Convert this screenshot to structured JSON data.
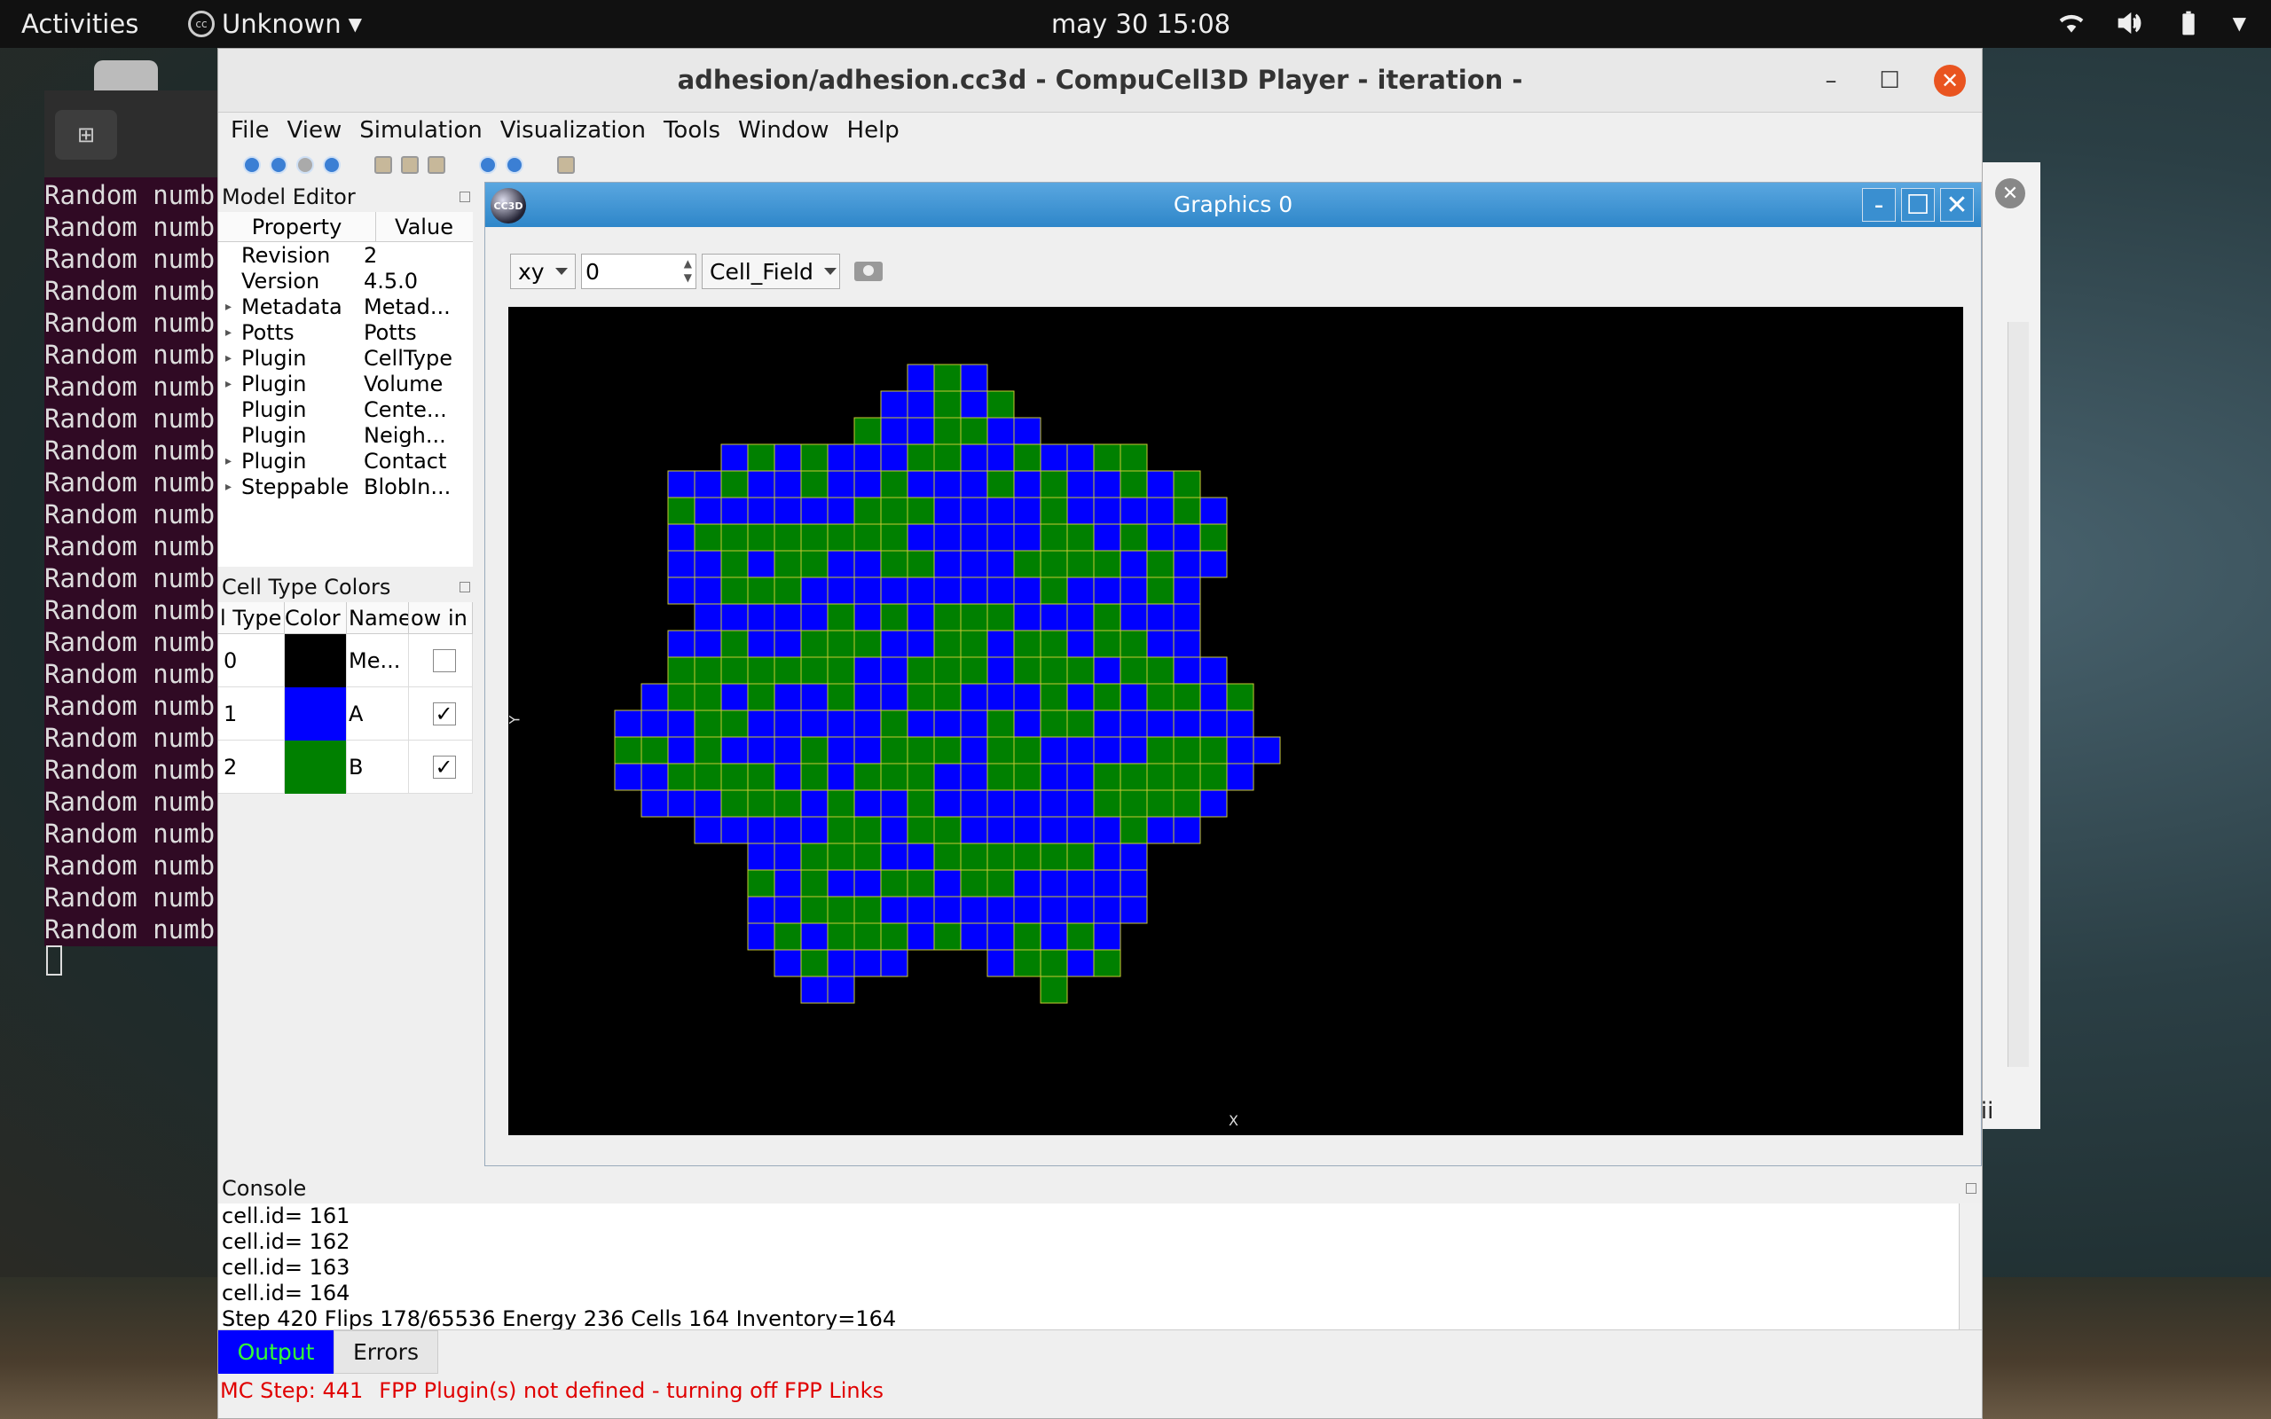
{
  "topbar": {
    "activities": "Activities",
    "app_name": "Unknown",
    "clock": "may 30  15:08"
  },
  "terminal": {
    "lines": [
      "Random numb",
      "Random numb",
      "Random numb",
      "Random numb",
      "Random numb",
      "Random numb",
      "Random numb",
      "Random numb",
      "Random numb",
      "Random numb",
      "Random numb",
      "Random numb",
      "Random numb",
      "Random numb",
      "Random numb",
      "Random numb",
      "Random numb",
      "Random numb",
      "Random numb",
      "Random numb",
      "Random numb",
      "Random numb",
      "Random numb",
      "Random numb"
    ]
  },
  "bgwin": {
    "partial_text": "scii"
  },
  "window": {
    "title": "adhesion/adhesion.cc3d - CompuCell3D Player - iteration -"
  },
  "menu": [
    "File",
    "View",
    "Simulation",
    "Visualization",
    "Tools",
    "Window",
    "Help"
  ],
  "model_editor": {
    "title": "Model Editor",
    "col_property": "Property",
    "col_value": "Value",
    "rows": [
      {
        "expand": "",
        "property": "Revision",
        "value": "2"
      },
      {
        "expand": "",
        "property": "Version",
        "value": "4.5.0"
      },
      {
        "expand": "▸",
        "property": "Metadata",
        "value": "Metad..."
      },
      {
        "expand": "▸",
        "property": "Potts",
        "value": "Potts"
      },
      {
        "expand": "▸",
        "property": "Plugin",
        "value": "CellType"
      },
      {
        "expand": "▸",
        "property": "Plugin",
        "value": "Volume"
      },
      {
        "expand": "",
        "property": "Plugin",
        "value": "Cente..."
      },
      {
        "expand": "",
        "property": "Plugin",
        "value": "Neigh..."
      },
      {
        "expand": "▸",
        "property": "Plugin",
        "value": "Contact"
      },
      {
        "expand": "▸",
        "property": "Steppable",
        "value": "BlobIn..."
      }
    ]
  },
  "cell_type_colors": {
    "title": "Cell Type Colors",
    "col_type": "l Type",
    "col_color": "Color",
    "col_name": "Name",
    "col_show": "ow in",
    "rows": [
      {
        "type": "0",
        "color": "#000000",
        "name": "Me...",
        "checked": ""
      },
      {
        "type": "1",
        "color": "#0000ff",
        "name": "A",
        "checked": "✓"
      },
      {
        "type": "2",
        "color": "#008000",
        "name": "B",
        "checked": "✓"
      }
    ]
  },
  "graphics": {
    "title": "Graphics 0",
    "logo_text": "CC3D",
    "plane": "xy",
    "slice": "0",
    "field": "Cell_Field",
    "axis_x": "X",
    "axis_y": "Y",
    "colors": {
      "blue": "#0000ff",
      "green": "#008000",
      "border": "#c8c832"
    }
  },
  "console": {
    "title": "Console",
    "lines": [
      "cell.id= 161",
      "cell.id= 162",
      "cell.id= 163",
      "cell.id= 164",
      "Step 420 Flips 178/65536 Energy 236 Cells 164 Inventory=164"
    ],
    "tab_output": "Output",
    "tab_errors": "Errors"
  },
  "status": {
    "mc_step": "MC Step: 441",
    "message": "FPP Plugin(s) not defined - turning off FPP Links"
  }
}
